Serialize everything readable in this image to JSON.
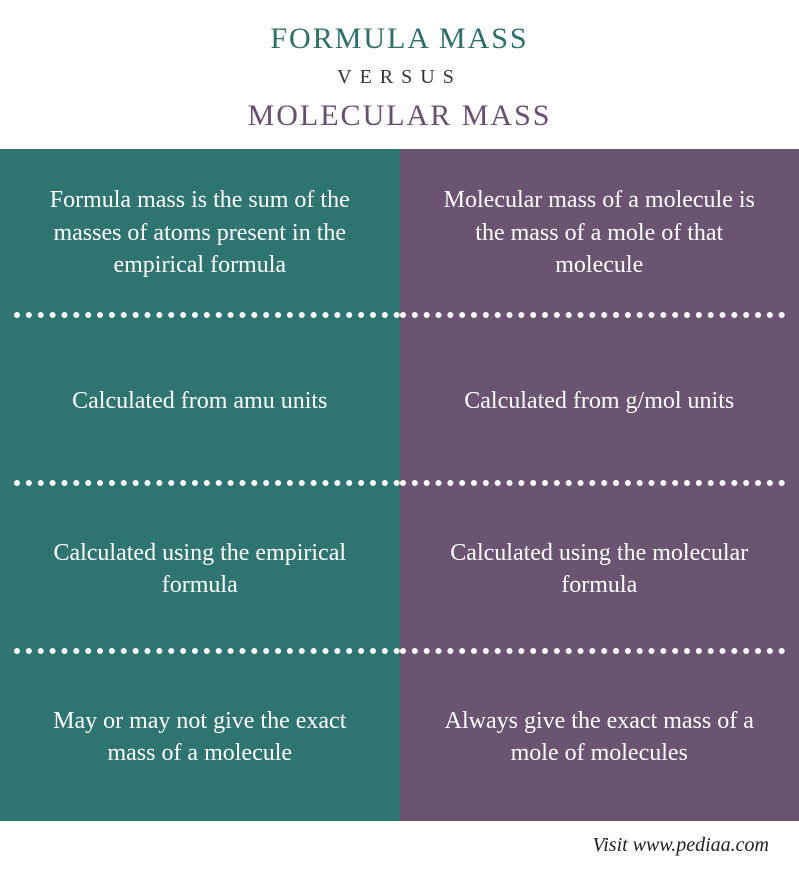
{
  "header": {
    "title_left": "FORMULA MASS",
    "title_left_color": "#2c6e6a",
    "versus": "VERSUS",
    "title_right": "MOLECULAR MASS",
    "title_right_color": "#6a4c73"
  },
  "columns": {
    "left": {
      "bg_color": "#2e7471",
      "cells": [
        "Formula mass is the sum of the masses of atoms present in the empirical formula",
        "Calculated from amu units",
        "Calculated using the empirical formula",
        "May or may not give the exact mass of a molecule"
      ]
    },
    "right": {
      "bg_color": "#6a5472",
      "cells": [
        "Molecular mass of a molecule is the mass of a mole of that molecule",
        "Calculated from g/mol units",
        "Calculated using the molecular formula",
        "Always give the exact mass of a mole of molecules"
      ]
    }
  },
  "footer": {
    "text": "Visit www.pediaa.com"
  },
  "styling": {
    "text_color": "#ffffff",
    "divider_color": "#ffffff",
    "divider_style": "dotted",
    "row_count": 4,
    "cell_fontsize": 24,
    "header_fontsize": 30,
    "versus_fontsize": 20
  }
}
